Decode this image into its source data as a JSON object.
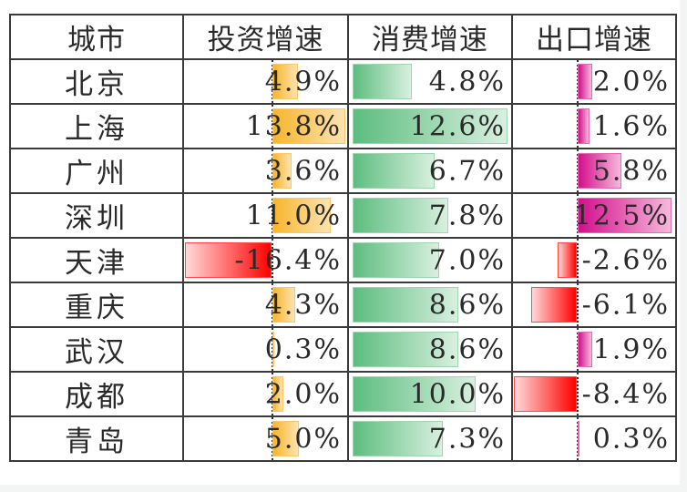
{
  "table": {
    "headers": [
      "城市",
      "投资增速",
      "消费增速",
      "出口增速"
    ],
    "rows": [
      {
        "city": "北京",
        "investment": "4.9%",
        "consumption": "4.8%",
        "export": "2.0%"
      },
      {
        "city": "上海",
        "investment": "13.8%",
        "consumption": "12.6%",
        "export": "1.6%"
      },
      {
        "city": "广州",
        "investment": "3.6%",
        "consumption": "6.7%",
        "export": "5.8%"
      },
      {
        "city": "深圳",
        "investment": "11.0%",
        "consumption": "7.8%",
        "export": "12.5%"
      },
      {
        "city": "天津",
        "investment": "-16.4%",
        "consumption": "7.0%",
        "export": "-2.6%"
      },
      {
        "city": "重庆",
        "investment": "4.3%",
        "consumption": "8.6%",
        "export": "-6.1%"
      },
      {
        "city": "武汉",
        "investment": "0.3%",
        "consumption": "8.6%",
        "export": "1.9%"
      },
      {
        "city": "成都",
        "investment": "2.0%",
        "consumption": "10.0%",
        "export": "-8.4%"
      },
      {
        "city": "青岛",
        "investment": "5.0%",
        "consumption": "7.3%",
        "export": "0.3%"
      }
    ]
  },
  "data_bars": {
    "investment": {
      "values": [
        4.9,
        13.8,
        3.6,
        11.0,
        -16.4,
        4.3,
        0.3,
        2.0,
        5.0
      ],
      "positive_color": "#f7b52b",
      "negative_color": "#ff0000"
    },
    "consumption": {
      "values": [
        4.8,
        12.6,
        6.7,
        7.8,
        7.0,
        8.6,
        8.6,
        10.0,
        7.3
      ],
      "positive_color": "#5dbd7f",
      "negative_color": "#ff0000"
    },
    "export": {
      "values": [
        2.0,
        1.6,
        5.8,
        12.5,
        -2.6,
        -6.1,
        1.9,
        -8.4,
        0.3
      ],
      "positive_color": "#d40f8c",
      "negative_color": "#ff0000"
    }
  }
}
